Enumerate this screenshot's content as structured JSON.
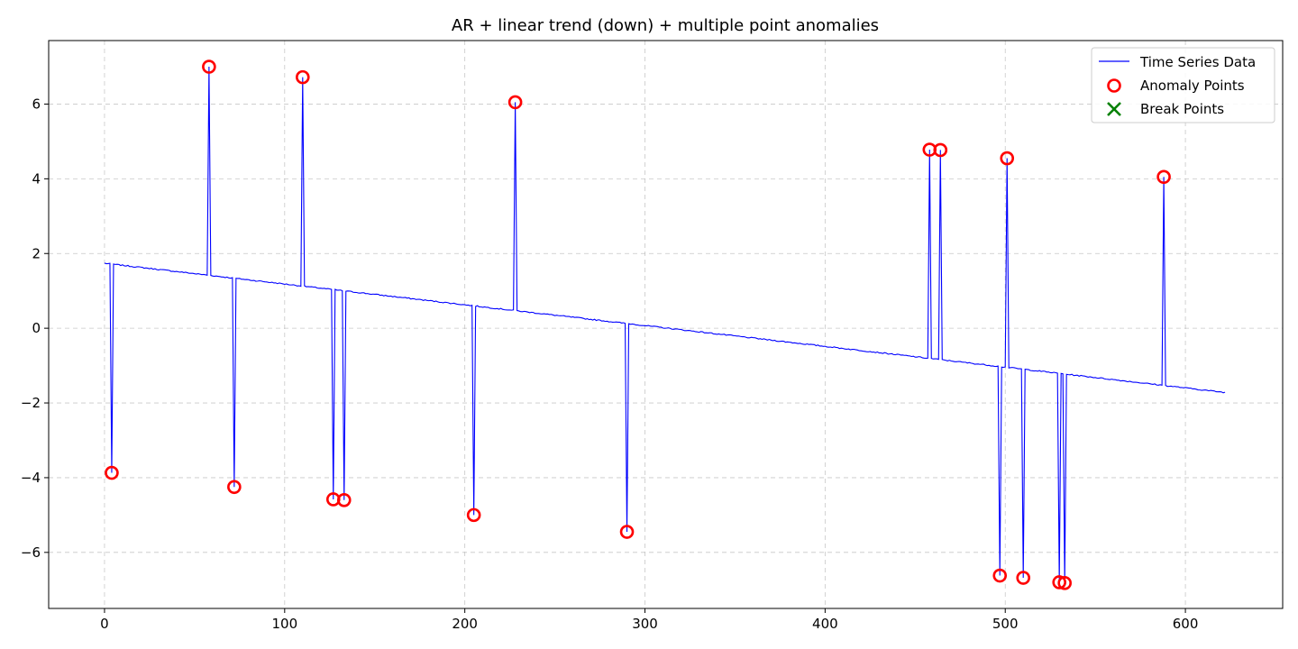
{
  "chart_data": {
    "type": "line",
    "title": "AR + linear trend (down) + multiple point anomalies",
    "xlabel": "",
    "ylabel": "",
    "xlim": [
      -31,
      654
    ],
    "ylim": [
      -7.5,
      7.7
    ],
    "xticks": [
      0,
      100,
      200,
      300,
      400,
      500,
      600
    ],
    "yticks": [
      -6,
      -4,
      -2,
      0,
      2,
      4,
      6
    ],
    "grid": true,
    "legend_position": "top-right",
    "baseline": {
      "x_start": 0,
      "y_start": 1.74,
      "x_end": 622,
      "y_end": -1.72
    },
    "series": [
      {
        "name": "Time Series Data",
        "kind": "line",
        "color": "#0000ff"
      },
      {
        "name": "Anomaly Points",
        "kind": "scatter-hollow-circle",
        "color": "#ff0000",
        "points": [
          {
            "x": 4,
            "y": -3.87
          },
          {
            "x": 58,
            "y": 7.0
          },
          {
            "x": 72,
            "y": -4.25
          },
          {
            "x": 110,
            "y": 6.72
          },
          {
            "x": 127,
            "y": -4.58
          },
          {
            "x": 133,
            "y": -4.6
          },
          {
            "x": 205,
            "y": -5.0
          },
          {
            "x": 228,
            "y": 6.05
          },
          {
            "x": 290,
            "y": -5.45
          },
          {
            "x": 458,
            "y": 4.78
          },
          {
            "x": 464,
            "y": 4.77
          },
          {
            "x": 497,
            "y": -6.62
          },
          {
            "x": 501,
            "y": 4.55
          },
          {
            "x": 510,
            "y": -6.68
          },
          {
            "x": 530,
            "y": -6.8
          },
          {
            "x": 533,
            "y": -6.82
          },
          {
            "x": 588,
            "y": 4.05
          }
        ]
      },
      {
        "name": "Break Points",
        "kind": "scatter-x",
        "color": "#008000",
        "points": []
      }
    ]
  }
}
